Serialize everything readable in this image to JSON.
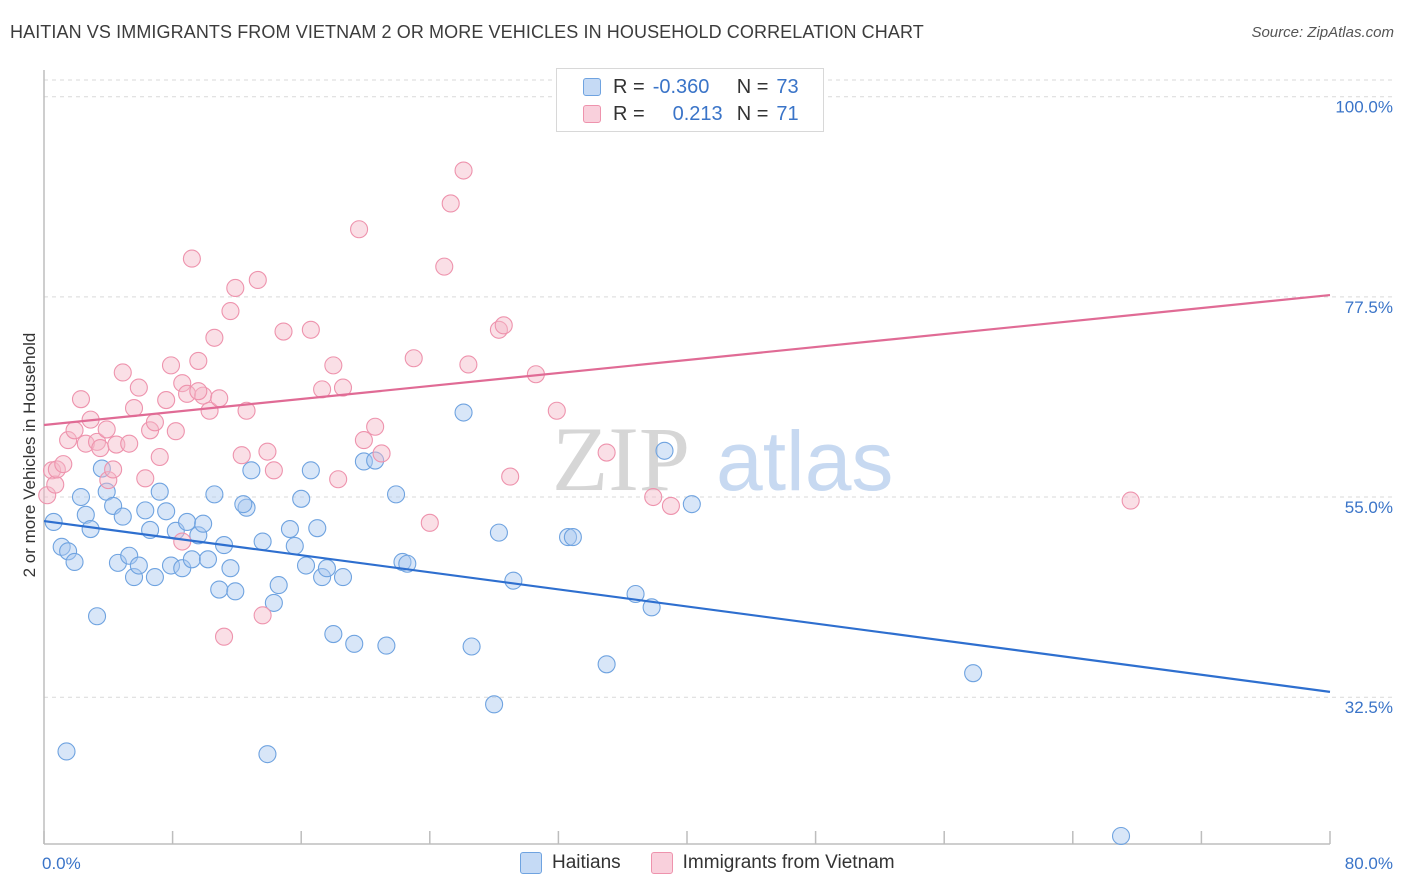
{
  "title": "HAITIAN VS IMMIGRANTS FROM VIETNAM 2 OR MORE VEHICLES IN HOUSEHOLD CORRELATION CHART",
  "source": "Source: ZipAtlas.com",
  "watermark": {
    "zip": "ZIP",
    "atlas": "atlas"
  },
  "legend": {
    "rows": [
      {
        "r_label": "R =",
        "r_value": "-0.360",
        "n_label": "N =",
        "n_value": "73",
        "color": "#a8c8f0"
      },
      {
        "r_label": "R =",
        "r_value": "0.213",
        "n_label": "N =",
        "n_value": "71",
        "color": "#f4b8c8"
      }
    ]
  },
  "bottom_legend": {
    "items": [
      {
        "label": "Haitians",
        "color": "#a8c8f0"
      },
      {
        "label": "Immigrants from Vietnam",
        "color": "#f4b8c8"
      }
    ]
  },
  "chart_data": {
    "type": "scatter",
    "title": "HAITIAN VS IMMIGRANTS FROM VIETNAM 2 OR MORE VEHICLES IN HOUSEHOLD CORRELATION CHART",
    "xlabel": "",
    "ylabel": "2 or more Vehicles in Household",
    "xlim": [
      0,
      80
    ],
    "ylim": [
      16,
      103
    ],
    "x_tick_labels": [
      "0.0%",
      "80.0%"
    ],
    "y_ticks": [
      32.5,
      55.0,
      77.5,
      100.0
    ],
    "y_tick_labels": [
      "32.5%",
      "55.0%",
      "77.5%",
      "100.0%"
    ],
    "grid": true,
    "series": [
      {
        "name": "Haitians",
        "color": "#6fa3e0",
        "fill": "#a8c8f0",
        "trend": {
          "x": [
            0,
            80
          ],
          "y": [
            52.3,
            33.1
          ],
          "color": "#2e6fcf"
        },
        "points": [
          [
            0.6,
            52.2
          ],
          [
            1.1,
            49.4
          ],
          [
            1.5,
            48.9
          ],
          [
            1.9,
            47.7
          ],
          [
            2.3,
            55.0
          ],
          [
            2.6,
            53.0
          ],
          [
            2.9,
            51.4
          ],
          [
            3.3,
            41.6
          ],
          [
            3.6,
            58.2
          ],
          [
            3.9,
            55.6
          ],
          [
            4.3,
            54.0
          ],
          [
            4.6,
            47.6
          ],
          [
            4.9,
            52.8
          ],
          [
            5.3,
            48.4
          ],
          [
            5.6,
            46.0
          ],
          [
            5.9,
            47.3
          ],
          [
            6.3,
            53.5
          ],
          [
            6.6,
            51.3
          ],
          [
            6.9,
            46.0
          ],
          [
            7.2,
            55.6
          ],
          [
            7.6,
            53.4
          ],
          [
            7.9,
            47.3
          ],
          [
            8.2,
            51.2
          ],
          [
            8.6,
            47.0
          ],
          [
            8.9,
            52.2
          ],
          [
            9.2,
            48.0
          ],
          [
            9.6,
            50.7
          ],
          [
            9.9,
            52.0
          ],
          [
            10.2,
            48.0
          ],
          [
            10.6,
            55.3
          ],
          [
            10.9,
            44.6
          ],
          [
            11.2,
            49.6
          ],
          [
            11.6,
            47.0
          ],
          [
            11.9,
            44.4
          ],
          [
            12.6,
            53.8
          ],
          [
            12.9,
            58.0
          ],
          [
            13.6,
            50.0
          ],
          [
            14.3,
            43.1
          ],
          [
            14.6,
            45.1
          ],
          [
            15.3,
            51.4
          ],
          [
            15.6,
            49.5
          ],
          [
            16.0,
            54.8
          ],
          [
            16.3,
            47.3
          ],
          [
            16.6,
            58.0
          ],
          [
            17.0,
            51.5
          ],
          [
            17.3,
            46.0
          ],
          [
            17.6,
            47.0
          ],
          [
            18.0,
            39.6
          ],
          [
            18.6,
            46.0
          ],
          [
            19.3,
            38.5
          ],
          [
            19.9,
            59.0
          ],
          [
            20.6,
            59.1
          ],
          [
            21.3,
            38.3
          ],
          [
            21.9,
            55.3
          ],
          [
            22.3,
            47.7
          ],
          [
            22.6,
            47.5
          ],
          [
            26.1,
            64.5
          ],
          [
            26.6,
            38.2
          ],
          [
            28.0,
            31.7
          ],
          [
            28.3,
            51.0
          ],
          [
            29.2,
            45.6
          ],
          [
            32.6,
            50.5
          ],
          [
            32.9,
            50.5
          ],
          [
            35.0,
            36.2
          ],
          [
            36.8,
            44.1
          ],
          [
            37.8,
            42.6
          ],
          [
            38.6,
            60.2
          ],
          [
            40.3,
            54.2
          ],
          [
            57.8,
            35.2
          ],
          [
            1.4,
            26.4
          ],
          [
            13.9,
            26.1
          ],
          [
            67.0,
            16.9
          ],
          [
            12.4,
            54.2
          ]
        ]
      },
      {
        "name": "Immigrants from Vietnam",
        "color": "#ee93ad",
        "fill": "#f4b8c8",
        "trend": {
          "x": [
            0,
            80
          ],
          "y": [
            63.1,
            77.7
          ],
          "color": "#e06b95"
        },
        "points": [
          [
            0.2,
            55.2
          ],
          [
            0.5,
            58.0
          ],
          [
            0.7,
            56.4
          ],
          [
            0.8,
            58.1
          ],
          [
            1.2,
            58.7
          ],
          [
            1.5,
            61.4
          ],
          [
            1.9,
            62.5
          ],
          [
            2.3,
            66.0
          ],
          [
            2.6,
            61.0
          ],
          [
            2.9,
            63.7
          ],
          [
            3.3,
            61.2
          ],
          [
            3.5,
            60.5
          ],
          [
            3.9,
            62.6
          ],
          [
            4.0,
            56.9
          ],
          [
            4.3,
            58.1
          ],
          [
            4.5,
            60.9
          ],
          [
            4.9,
            69.0
          ],
          [
            5.3,
            61.0
          ],
          [
            5.6,
            65.0
          ],
          [
            5.9,
            67.3
          ],
          [
            6.3,
            57.1
          ],
          [
            6.6,
            62.5
          ],
          [
            6.9,
            63.4
          ],
          [
            7.2,
            59.5
          ],
          [
            7.6,
            65.9
          ],
          [
            7.9,
            69.8
          ],
          [
            8.2,
            62.4
          ],
          [
            8.6,
            67.8
          ],
          [
            8.9,
            66.6
          ],
          [
            9.2,
            81.8
          ],
          [
            9.6,
            70.3
          ],
          [
            9.9,
            66.4
          ],
          [
            10.3,
            64.7
          ],
          [
            10.6,
            72.9
          ],
          [
            10.9,
            66.1
          ],
          [
            11.6,
            75.9
          ],
          [
            11.9,
            78.5
          ],
          [
            12.3,
            59.7
          ],
          [
            12.6,
            64.7
          ],
          [
            13.3,
            79.4
          ],
          [
            13.9,
            60.1
          ],
          [
            14.3,
            58.0
          ],
          [
            14.9,
            73.6
          ],
          [
            16.6,
            73.8
          ],
          [
            17.3,
            67.1
          ],
          [
            18.0,
            69.8
          ],
          [
            18.3,
            57.0
          ],
          [
            18.6,
            67.3
          ],
          [
            19.6,
            85.1
          ],
          [
            19.9,
            61.4
          ],
          [
            20.6,
            62.9
          ],
          [
            21.0,
            59.9
          ],
          [
            23.0,
            70.6
          ],
          [
            24.0,
            52.1
          ],
          [
            24.9,
            80.9
          ],
          [
            25.3,
            88.0
          ],
          [
            26.1,
            91.7
          ],
          [
            26.4,
            69.9
          ],
          [
            28.3,
            73.8
          ],
          [
            28.6,
            74.3
          ],
          [
            29.0,
            57.3
          ],
          [
            30.6,
            68.8
          ],
          [
            31.9,
            64.7
          ],
          [
            35.0,
            60.0
          ],
          [
            37.9,
            55.0
          ],
          [
            39.0,
            54.0
          ],
          [
            67.6,
            54.6
          ],
          [
            11.2,
            39.3
          ],
          [
            13.6,
            41.7
          ],
          [
            8.6,
            50.0
          ],
          [
            9.6,
            66.9
          ]
        ]
      }
    ]
  }
}
